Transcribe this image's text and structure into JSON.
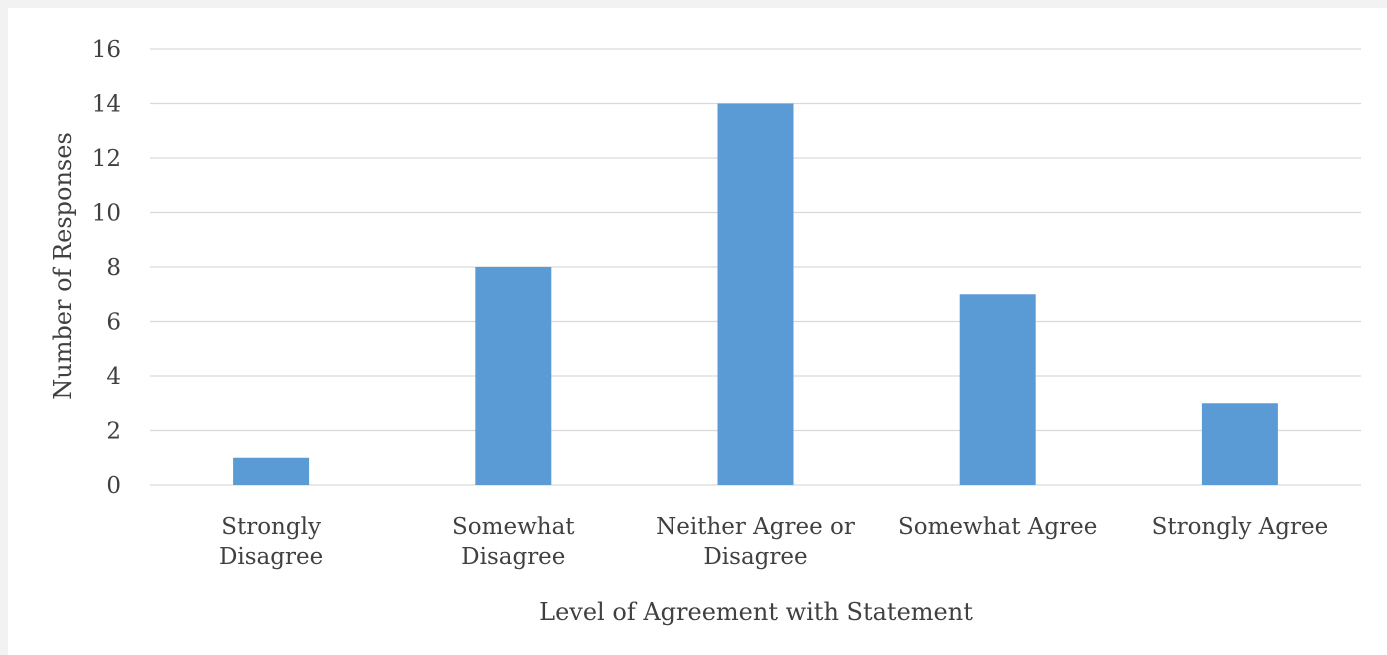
{
  "chart_data": {
    "type": "bar",
    "title": "",
    "xlabel": "Level of Agreement with Statement",
    "ylabel": "Number of Responses",
    "categories": [
      [
        "Strongly",
        "Disagree"
      ],
      [
        "Somewhat",
        "Disagree"
      ],
      [
        "Neither Agree or",
        "Disagree"
      ],
      [
        "Somewhat Agree"
      ],
      [
        "Strongly Agree"
      ]
    ],
    "values": [
      1,
      8,
      14,
      7,
      3
    ],
    "ylim": [
      0,
      16
    ],
    "yticks": [
      0,
      2,
      4,
      6,
      8,
      10,
      12,
      14,
      16
    ],
    "grid": true,
    "legend": "none",
    "colors": {
      "bar": "#5b9bd5",
      "grid": "#d9d9d9",
      "text": "#404040"
    }
  }
}
